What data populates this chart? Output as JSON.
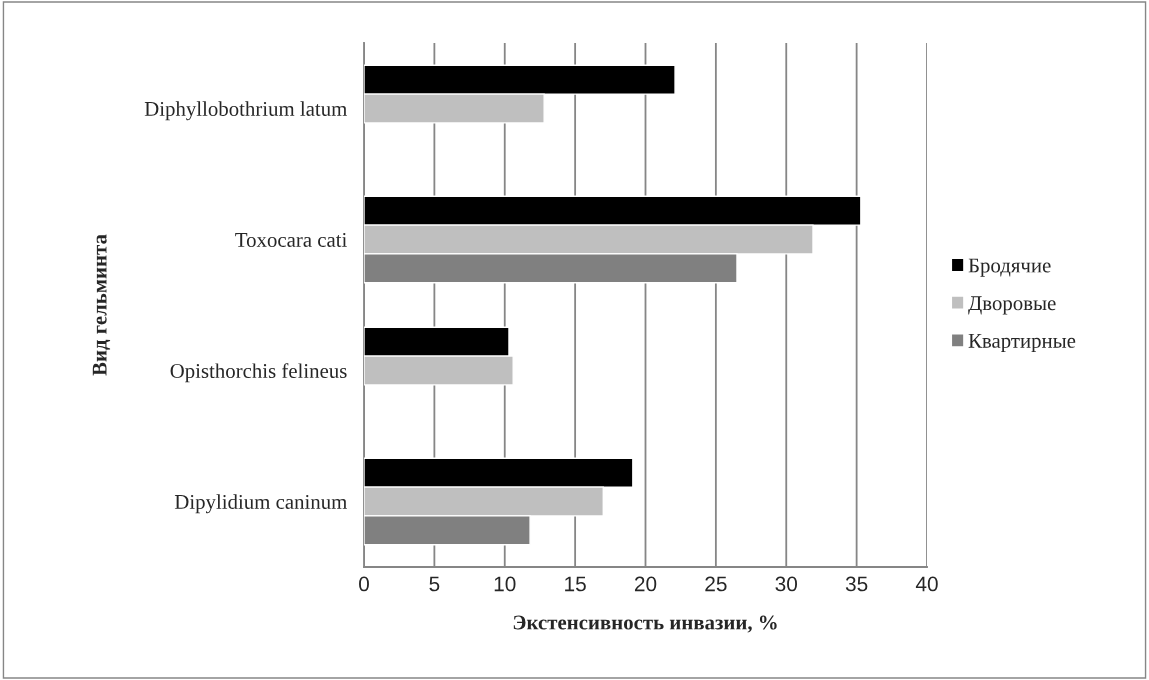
{
  "chart_data": {
    "type": "bar",
    "orientation": "horizontal",
    "xlabel": "Экстенсивность инвазии, %",
    "ylabel": "Вид гельминта",
    "categories": [
      "Diphyllobothrium latum",
      "Toxocara cati",
      "Opisthorchis felineus",
      "Dipylidium caninum"
    ],
    "series": [
      {
        "name": "Бродячие",
        "color": "#000000",
        "values": [
          22.1,
          35.3,
          10.3,
          19.1
        ]
      },
      {
        "name": "Дворовые",
        "color": "#bfbfbf",
        "values": [
          12.8,
          31.9,
          10.6,
          17.0
        ]
      },
      {
        "name": "Квартирные",
        "color": "#808080",
        "values": [
          null,
          26.5,
          null,
          11.8
        ]
      }
    ],
    "xlim": [
      0,
      40
    ],
    "xticks": [
      0,
      5,
      10,
      15,
      20,
      25,
      30,
      35,
      40
    ],
    "grid": "x",
    "legend": "right"
  }
}
